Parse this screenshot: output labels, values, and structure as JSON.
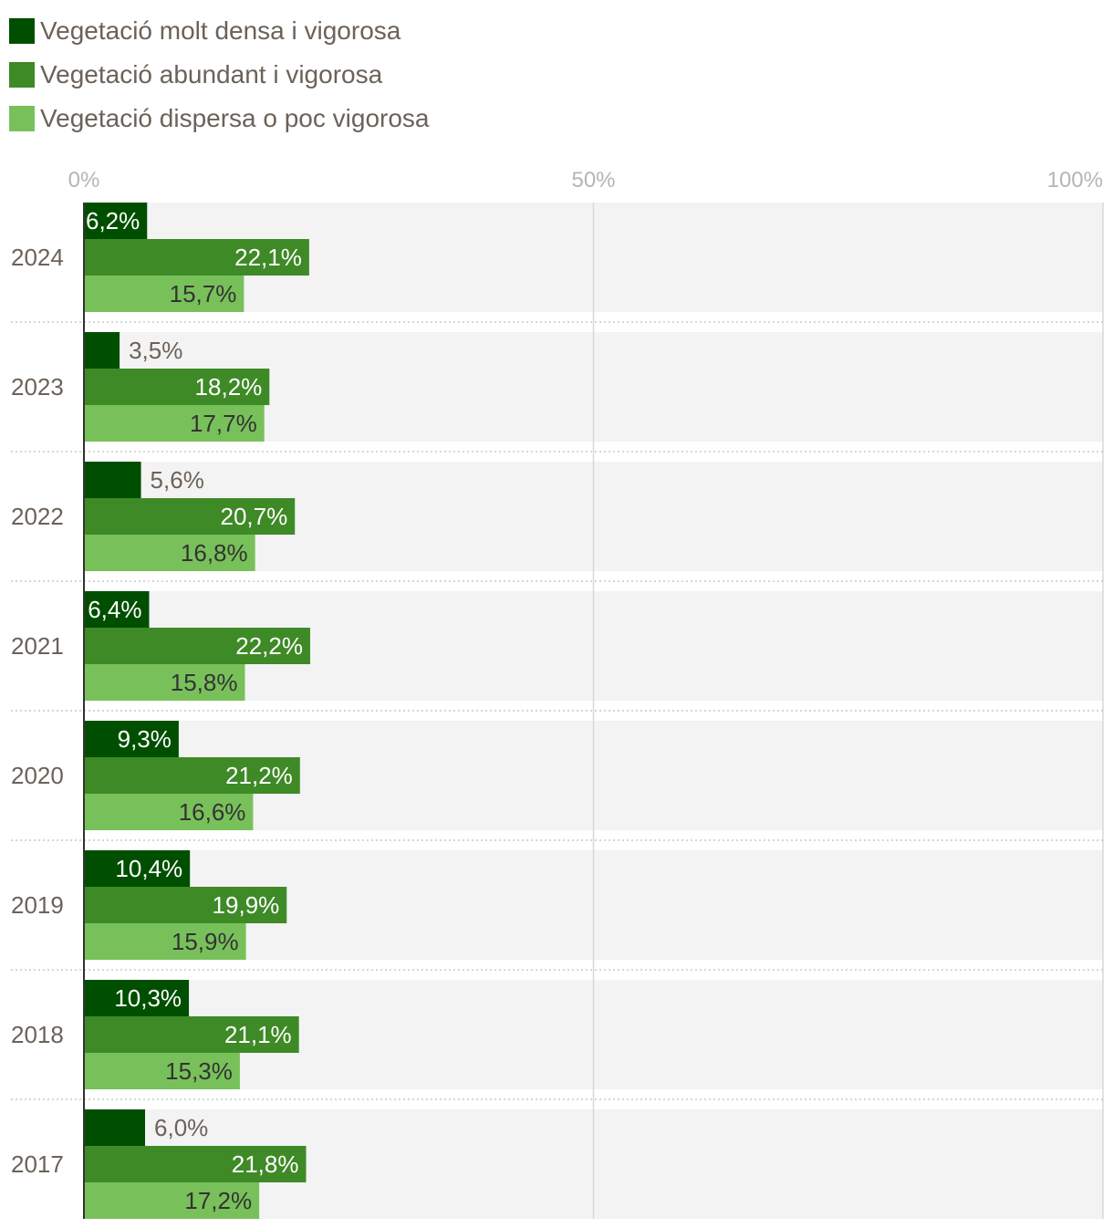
{
  "chart_data": {
    "type": "bar",
    "orientation": "horizontal",
    "xlim": [
      0,
      100
    ],
    "x_ticks": [
      "0%",
      "50%",
      "100%"
    ],
    "legend_position": "top-left",
    "grid": true,
    "categories": [
      "2024",
      "2023",
      "2022",
      "2021",
      "2020",
      "2019",
      "2018",
      "2017"
    ],
    "series": [
      {
        "name": "Vegetació molt densa i vigorosa",
        "color": "#004f00",
        "values": [
          6.2,
          3.5,
          5.6,
          6.4,
          9.3,
          10.4,
          10.3,
          6.0
        ],
        "labels": [
          "6,2%",
          "3,5%",
          "5,6%",
          "6,4%",
          "9,3%",
          "10,4%",
          "10,3%",
          "6,0%"
        ]
      },
      {
        "name": "Vegetació abundant i vigorosa",
        "color": "#3e8a26",
        "values": [
          22.1,
          18.2,
          20.7,
          22.2,
          21.2,
          19.9,
          21.1,
          21.8
        ],
        "labels": [
          "22,1%",
          "18,2%",
          "20,7%",
          "22,2%",
          "21,2%",
          "19,9%",
          "21,1%",
          "21,8%"
        ]
      },
      {
        "name": "Vegetació dispersa o poc vigorosa",
        "color": "#78c15a",
        "values": [
          15.7,
          17.7,
          16.8,
          15.8,
          16.6,
          15.9,
          15.3,
          17.2
        ],
        "labels": [
          "15,7%",
          "17,7%",
          "16,8%",
          "15,8%",
          "16,6%",
          "15,9%",
          "15,3%",
          "17,2%"
        ]
      }
    ]
  }
}
